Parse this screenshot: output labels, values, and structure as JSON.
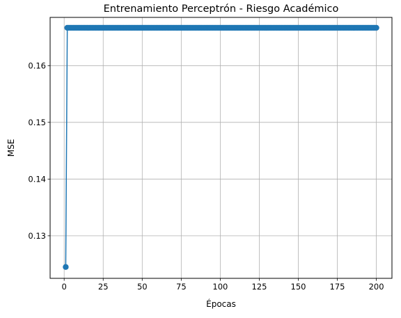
{
  "chart_data": {
    "type": "line",
    "title": "Entrenamiento Perceptrón - Riesgo Académico",
    "xlabel": "Épocas",
    "ylabel": "MSE",
    "xlim": [
      -9,
      210
    ],
    "ylim": [
      0.1225,
      0.1685
    ],
    "xticks": [
      0,
      25,
      50,
      75,
      100,
      125,
      150,
      175,
      200
    ],
    "yticks": [
      0.13,
      0.14,
      0.15,
      0.16
    ],
    "grid": true,
    "series_color": "#1f77b4",
    "grid_color": "#b0b0b0",
    "series": [
      {
        "first_point": {
          "x": 1,
          "y": 0.1245
        },
        "plateau": {
          "x_start": 2,
          "x_end": 200,
          "y": 0.16667
        }
      }
    ]
  }
}
